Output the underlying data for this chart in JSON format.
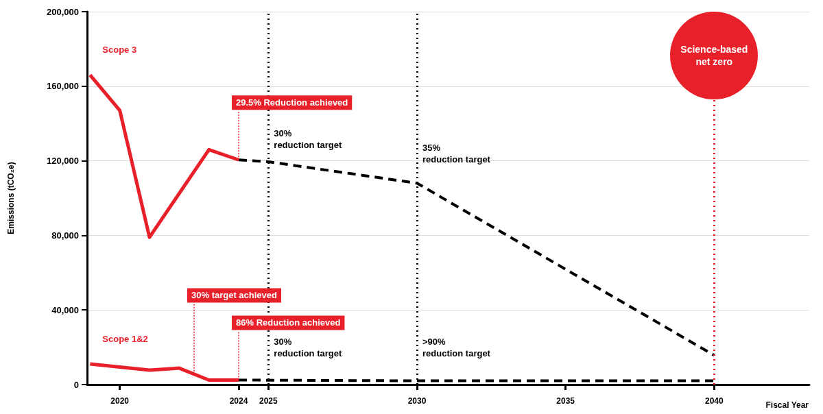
{
  "chart_data": {
    "type": "line",
    "xlabel": "Fiscal Year",
    "ylabel": "Emissions (tCO₂e)",
    "xlim": [
      2018.9,
      2043.2
    ],
    "xticks": [
      2020,
      2024,
      2025,
      2030,
      2035,
      2040
    ],
    "ylim": [
      0,
      200000
    ],
    "yticks": [
      {
        "value": 0,
        "label": "0"
      },
      {
        "value": 40000,
        "label": "40,000"
      },
      {
        "value": 80000,
        "label": "80,000"
      },
      {
        "value": 120000,
        "label": "120,000"
      },
      {
        "value": 160000,
        "label": "160,000"
      },
      {
        "value": 200000,
        "label": "200,000"
      }
    ],
    "grid": "y",
    "marker": "none",
    "series": [
      {
        "name": "Scope 3",
        "color": "#e8202a",
        "line_style": "solid",
        "x": [
          2019,
          2020,
          2021,
          2023,
          2024
        ],
        "values": [
          166000,
          147000,
          79000,
          126000,
          120500
        ]
      },
      {
        "color": "#000000",
        "line_style": "dashed",
        "x": [
          2024,
          2025,
          2030,
          2040
        ],
        "values": [
          120500,
          119500,
          108000,
          15700
        ]
      },
      {
        "name": "Scope 1&2",
        "color": "#e8202a",
        "line_style": "solid",
        "x": [
          2019,
          2021,
          2022,
          2023,
          2024
        ],
        "values": [
          11000,
          7700,
          8800,
          2400,
          2400
        ]
      },
      {
        "color": "#000000",
        "line_style": "dashed",
        "x": [
          2024,
          2030,
          2040
        ],
        "values": [
          2400,
          2000,
          2000
        ]
      }
    ],
    "ref_lines": [
      {
        "axis": "x",
        "value": 2025,
        "color": "#000000",
        "line_style": "dotted"
      },
      {
        "axis": "x",
        "value": 2030,
        "color": "#000000",
        "line_style": "dotted"
      },
      {
        "axis": "x",
        "value": 2040,
        "color": "#e8202a",
        "line_style": "dotted",
        "label": "Science-based\nnet zero"
      }
    ],
    "annotations": [
      {
        "text": "29.5% Reduction achieved",
        "x": 2024,
        "y": 120500
      },
      {
        "text": "86% Reduction achieved",
        "x": 2024,
        "y": 2400
      },
      {
        "text": "30% target achieved",
        "x": 2022.5,
        "y": 5600
      },
      {
        "text": "30%\nreduction target",
        "x": 2025,
        "y": 138000
      },
      {
        "text": "35%\nreduction target",
        "x": 2030,
        "y": 130000
      },
      {
        "text": "30%\nreduction target",
        "x": 2025,
        "y": 26000
      },
      {
        "text": ">90%\nreduction target",
        "x": 2030,
        "y": 26000
      }
    ]
  }
}
